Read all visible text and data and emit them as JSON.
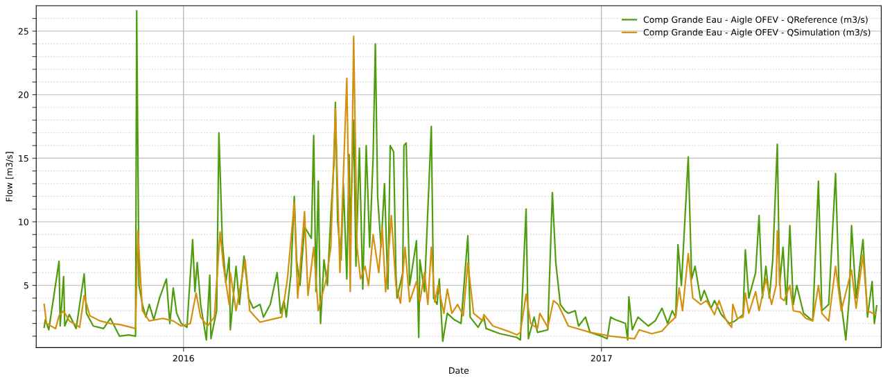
{
  "chart_data": {
    "type": "line",
    "xlabel": "Date",
    "ylabel": "Flow [m3/s]",
    "xlim": [
      "2015-08-25",
      "2017-09-03"
    ],
    "ylim": [
      0.1,
      27
    ],
    "xticks": [
      {
        "value": "2016-01-01",
        "label": "2016"
      },
      {
        "value": "2017-01-01",
        "label": "2017"
      }
    ],
    "yticks": [
      {
        "value": 1,
        "label": null
      },
      {
        "value": 2,
        "label": null
      },
      {
        "value": 3,
        "label": null
      },
      {
        "value": 4,
        "label": null
      },
      5,
      {
        "value": 6,
        "label": null
      },
      {
        "value": 7,
        "label": null
      },
      {
        "value": 8,
        "label": null
      },
      {
        "value": 9,
        "label": null
      },
      10,
      {
        "value": 11,
        "label": null
      },
      {
        "value": 12,
        "label": null
      },
      {
        "value": 13,
        "label": null
      },
      {
        "value": 14,
        "label": null
      },
      15,
      {
        "value": 16,
        "label": null
      },
      {
        "value": 17,
        "label": null
      },
      {
        "value": 18,
        "label": null
      },
      {
        "value": 19,
        "label": null
      },
      20,
      {
        "value": 21,
        "label": null
      },
      {
        "value": 22,
        "label": null
      },
      {
        "value": 23,
        "label": null
      },
      {
        "value": 24,
        "label": null
      },
      25,
      {
        "value": 26,
        "label": null
      }
    ],
    "grid": true,
    "legend": "top right",
    "marker": "none",
    "line_style": "solid",
    "series": [
      {
        "name": "Comp Grande Eau - Aigle OFEV - QReference (m3/s)",
        "color": "#4f9d0d",
        "x": [
          "2015-09-01",
          "2015-09-02",
          "2015-09-05",
          "2015-09-14",
          "2015-09-15",
          "2015-09-18",
          "2015-09-19",
          "2015-09-23",
          "2015-09-29",
          "2015-10-06",
          "2015-10-08",
          "2015-10-14",
          "2015-10-23",
          "2015-10-29",
          "2015-11-06",
          "2015-11-14",
          "2015-11-20",
          "2015-11-21",
          "2015-11-23",
          "2015-11-26",
          "2015-11-29",
          "2015-12-02",
          "2015-12-06",
          "2015-12-11",
          "2015-12-17",
          "2015-12-20",
          "2015-12-23",
          "2015-12-26",
          "2015-12-30",
          "2016-01-04",
          "2016-01-09",
          "2016-01-11",
          "2016-01-13",
          "2016-01-16",
          "2016-01-21",
          "2016-01-24",
          "2016-01-25",
          "2016-01-30",
          "2016-02-01",
          "2016-02-04",
          "2016-02-07",
          "2016-02-10",
          "2016-02-11",
          "2016-02-16",
          "2016-02-19",
          "2016-02-23",
          "2016-02-27",
          "2016-03-02",
          "2016-03-08",
          "2016-03-11",
          "2016-03-17",
          "2016-03-23",
          "2016-03-26",
          "2016-03-29",
          "2016-03-31",
          "2016-04-04",
          "2016-04-07",
          "2016-04-09",
          "2016-04-12",
          "2016-04-16",
          "2016-04-22",
          "2016-04-24",
          "2016-04-26",
          "2016-04-28",
          "2016-04-30",
          "2016-05-03",
          "2016-05-06",
          "2016-05-09",
          "2016-05-12",
          "2016-05-13",
          "2016-05-15",
          "2016-05-18",
          "2016-05-20",
          "2016-05-23",
          "2016-05-25",
          "2016-05-26",
          "2016-05-29",
          "2016-05-31",
          "2016-06-03",
          "2016-06-06",
          "2016-06-09",
          "2016-06-12",
          "2016-06-15",
          "2016-06-17",
          "2016-06-19",
          "2016-06-22",
          "2016-06-25",
          "2016-06-28",
          "2016-06-30",
          "2016-07-03",
          "2016-07-05",
          "2016-07-06",
          "2016-07-11",
          "2016-07-12",
          "2016-07-14",
          "2016-07-17",
          "2016-07-23",
          "2016-07-25",
          "2016-07-26",
          "2016-07-30",
          "2016-08-05",
          "2016-08-07",
          "2016-08-10",
          "2016-08-12",
          "2016-08-15",
          "2016-08-19",
          "2016-08-25",
          "2016-08-31",
          "2016-09-06",
          "2016-09-08",
          "2016-09-15",
          "2016-09-20",
          "2016-09-22",
          "2016-10-04",
          "2016-10-19",
          "2016-10-22",
          "2016-10-27",
          "2016-10-29",
          "2016-11-03",
          "2016-11-06",
          "2016-11-15",
          "2016-11-19",
          "2016-11-22",
          "2016-11-26",
          "2016-11-30",
          "2016-12-03",
          "2016-12-09",
          "2016-12-12",
          "2016-12-18",
          "2016-12-22",
          "2017-01-01",
          "2017-01-06",
          "2017-01-09",
          "2017-01-13",
          "2017-01-22",
          "2017-01-24",
          "2017-01-25",
          "2017-01-28",
          "2017-02-02",
          "2017-02-11",
          "2017-02-17",
          "2017-02-23",
          "2017-02-28",
          "2017-03-04",
          "2017-03-07",
          "2017-03-09",
          "2017-03-12",
          "2017-03-18",
          "2017-03-21",
          "2017-03-24",
          "2017-03-29",
          "2017-04-01",
          "2017-04-07",
          "2017-04-10",
          "2017-04-16",
          "2017-04-23",
          "2017-04-28",
          "2017-05-05",
          "2017-05-07",
          "2017-05-10",
          "2017-05-16",
          "2017-05-19",
          "2017-05-22",
          "2017-05-25",
          "2017-05-28",
          "2017-05-31",
          "2017-06-04",
          "2017-06-06",
          "2017-06-09",
          "2017-06-12",
          "2017-06-15",
          "2017-06-18",
          "2017-06-21",
          "2017-06-27",
          "2017-07-05",
          "2017-07-10",
          "2017-07-13",
          "2017-07-19",
          "2017-07-25",
          "2017-07-28",
          "2017-08-03",
          "2017-08-06",
          "2017-08-08",
          "2017-08-12",
          "2017-08-18",
          "2017-08-22",
          "2017-08-26",
          "2017-08-28",
          "2017-08-30"
        ],
        "values": [
          1.7,
          2.3,
          1.5,
          6.9,
          1.8,
          5.7,
          1.8,
          2.7,
          1.6,
          5.9,
          2.8,
          1.8,
          1.6,
          2.4,
          1.0,
          1.1,
          1.0,
          26.6,
          5.0,
          3.5,
          2.5,
          3.5,
          2.3,
          4.0,
          5.5,
          2.0,
          4.8,
          2.8,
          2.0,
          1.7,
          8.6,
          4.5,
          6.8,
          3.5,
          0.7,
          5.8,
          0.8,
          3.0,
          17.0,
          8.5,
          5.2,
          7.2,
          1.5,
          6.5,
          3.5,
          7.3,
          4.0,
          3.2,
          3.5,
          2.5,
          3.5,
          6.0,
          2.8,
          3.8,
          2.5,
          5.8,
          12.0,
          7.0,
          5.0,
          9.6,
          8.7,
          16.8,
          4.5,
          13.2,
          2.0,
          7.0,
          5.0,
          10.5,
          15.0,
          19.4,
          10.0,
          7.0,
          13.0,
          5.5,
          15.3,
          9.0,
          18.0,
          6.5,
          15.8,
          4.7,
          16.0,
          8.0,
          15.0,
          24.0,
          12.0,
          8.0,
          13.0,
          4.7,
          16.0,
          15.5,
          6.0,
          4.0,
          6.0,
          16.0,
          16.2,
          5.0,
          8.5,
          0.9,
          7.0,
          4.5,
          17.5,
          4.0,
          3.5,
          5.5,
          0.6,
          2.8,
          2.3,
          2.0,
          8.9,
          2.5,
          1.7,
          2.5,
          1.6,
          1.2,
          0.9,
          0.7,
          11.0,
          0.8,
          2.5,
          1.3,
          1.5,
          12.3,
          6.8,
          3.5,
          3.0,
          2.8,
          3.0,
          1.8,
          2.5,
          1.3,
          1.0,
          0.8,
          2.5,
          2.3,
          2.0,
          0.7,
          4.1,
          1.5,
          2.5,
          1.8,
          2.2,
          3.2,
          2.0,
          3.0,
          2.5,
          8.2,
          5.0,
          15.1,
          5.5,
          6.5,
          3.8,
          4.6,
          3.2,
          3.8,
          2.7,
          2.0,
          2.2,
          2.7,
          7.8,
          4.0,
          6.0,
          10.5,
          4.0,
          6.5,
          4.0,
          7.0,
          16.1,
          5.0,
          8.0,
          3.5,
          9.7,
          3.5,
          5.0,
          2.8,
          2.2,
          13.2,
          3.0,
          3.5,
          13.8,
          5.0,
          0.7,
          4.0,
          9.7,
          4.0,
          8.6,
          2.5,
          5.3,
          2.0,
          3.4
        ]
      },
      {
        "name": "Comp Grande Eau - Aigle OFEV - QSimulation (m3/s)",
        "color": "#d4900f",
        "x": [
          "2015-09-01",
          "2015-09-03",
          "2015-09-11",
          "2015-09-14",
          "2015-09-18",
          "2015-09-23",
          "2015-09-29",
          "2015-10-02",
          "2015-10-06",
          "2015-10-11",
          "2015-10-20",
          "2015-10-29",
          "2015-11-07",
          "2015-11-20",
          "2015-11-22",
          "2015-11-26",
          "2015-12-02",
          "2015-12-14",
          "2015-12-23",
          "2015-12-30",
          "2016-01-07",
          "2016-01-12",
          "2016-01-16",
          "2016-01-22",
          "2016-01-28",
          "2016-02-02",
          "2016-02-05",
          "2016-02-10",
          "2016-02-11",
          "2016-02-16",
          "2016-02-24",
          "2016-02-28",
          "2016-03-08",
          "2016-03-17",
          "2016-03-27",
          "2016-04-01",
          "2016-04-07",
          "2016-04-10",
          "2016-04-16",
          "2016-04-19",
          "2016-04-24",
          "2016-04-28",
          "2016-05-05",
          "2016-05-09",
          "2016-05-13",
          "2016-05-17",
          "2016-05-23",
          "2016-05-26",
          "2016-05-29",
          "2016-06-01",
          "2016-06-04",
          "2016-06-08",
          "2016-06-11",
          "2016-06-15",
          "2016-06-20",
          "2016-06-23",
          "2016-06-26",
          "2016-07-01",
          "2016-07-05",
          "2016-07-09",
          "2016-07-13",
          "2016-07-17",
          "2016-07-23",
          "2016-07-26",
          "2016-07-30",
          "2016-08-02",
          "2016-08-05",
          "2016-08-08",
          "2016-08-11",
          "2016-08-16",
          "2016-08-19",
          "2016-08-23",
          "2016-08-28",
          "2016-09-02",
          "2016-09-06",
          "2016-09-11",
          "2016-09-19",
          "2016-09-20",
          "2016-09-28",
          "2016-10-11",
          "2016-10-19",
          "2016-10-22",
          "2016-10-27",
          "2016-10-31",
          "2016-11-06",
          "2016-11-08",
          "2016-11-15",
          "2016-11-20",
          "2016-11-24",
          "2016-12-03",
          "2016-12-22",
          "2017-01-09",
          "2017-01-30",
          "2017-02-03",
          "2017-02-14",
          "2017-02-23",
          "2017-03-01",
          "2017-03-07",
          "2017-03-10",
          "2017-03-13",
          "2017-03-18",
          "2017-03-22",
          "2017-03-29",
          "2017-04-03",
          "2017-04-10",
          "2017-04-14",
          "2017-04-19",
          "2017-04-22",
          "2017-04-25",
          "2017-04-26",
          "2017-04-30",
          "2017-05-05",
          "2017-05-07",
          "2017-05-10",
          "2017-05-16",
          "2017-05-19",
          "2017-05-25",
          "2017-05-30",
          "2017-06-03",
          "2017-06-04",
          "2017-06-07",
          "2017-06-10",
          "2017-06-15",
          "2017-06-18",
          "2017-06-24",
          "2017-06-29",
          "2017-07-05",
          "2017-07-10",
          "2017-07-13",
          "2017-07-19",
          "2017-07-25",
          "2017-07-30",
          "2017-08-08",
          "2017-08-12",
          "2017-08-18",
          "2017-08-22",
          "2017-08-29"
        ],
        "values": [
          3.5,
          2.0,
          1.6,
          2.6,
          3.0,
          2.2,
          1.9,
          1.7,
          4.2,
          2.6,
          2.2,
          2.0,
          1.9,
          1.6,
          9.3,
          3.0,
          2.2,
          2.4,
          2.2,
          1.8,
          2.0,
          4.4,
          2.5,
          1.8,
          2.5,
          9.2,
          6.5,
          3.5,
          6.0,
          3.0,
          7.0,
          3.0,
          2.1,
          2.3,
          2.5,
          5.5,
          11.5,
          4.0,
          10.8,
          4.2,
          8.0,
          3.0,
          5.5,
          8.0,
          18.9,
          6.0,
          21.3,
          4.5,
          24.6,
          8.0,
          5.5,
          6.5,
          5.0,
          9.0,
          6.0,
          9.5,
          4.5,
          10.5,
          5.0,
          3.6,
          8.0,
          3.7,
          5.3,
          3.7,
          6.0,
          3.5,
          8.0,
          3.7,
          5.0,
          2.8,
          4.7,
          2.8,
          3.5,
          2.6,
          6.8,
          2.8,
          2.2,
          2.7,
          1.8,
          1.4,
          1.1,
          1.3,
          4.3,
          2.0,
          1.6,
          2.8,
          1.7,
          3.8,
          3.5,
          1.8,
          1.3,
          1.0,
          0.8,
          1.5,
          1.2,
          1.4,
          2.0,
          2.5,
          4.8,
          3.0,
          7.5,
          4.0,
          3.5,
          3.8,
          2.7,
          3.8,
          2.5,
          2.0,
          1.7,
          3.5,
          2.4,
          2.5,
          4.4,
          2.8,
          4.5,
          3.0,
          5.5,
          3.5,
          5.0,
          9.3,
          4.0,
          3.8,
          5.0,
          3.0,
          2.9,
          2.4,
          2.2,
          5.0,
          2.8,
          2.2,
          6.5,
          3.0,
          6.2,
          3.2,
          7.4,
          3.0,
          2.7
        ]
      }
    ]
  }
}
